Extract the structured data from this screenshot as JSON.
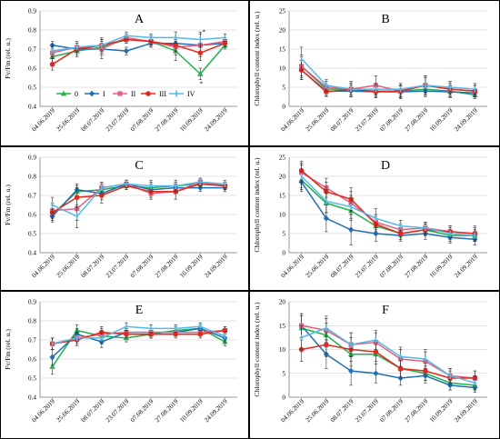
{
  "colors": {
    "0": "#22b14c",
    "I": "#1f6fb5",
    "II": "#e0607e",
    "III": "#e02a1f",
    "IV": "#55b8e6",
    "grid": "#c8c8c8",
    "axis": "#7f7f7f",
    "border": "#000000"
  },
  "chart_data": [
    {
      "type": "line",
      "panel_label": "A",
      "ylabel": "Fv/Fm (rel. u.)",
      "ylim": [
        0.4,
        0.9
      ],
      "yticks": [
        "0.4",
        "0.5",
        "0.6",
        "0.7",
        "0.8",
        "0.9"
      ],
      "grid": true,
      "categories": [
        "04.06.2019",
        "25.06.2019",
        "08.07.2019",
        "23.07.2019",
        "07.08.2019",
        "27.08.2019",
        "10.09.2019",
        "24.09.2019"
      ],
      "legend": {
        "position": "bottom-left",
        "entries": [
          "0",
          "I",
          "II",
          "III",
          "IV"
        ]
      },
      "annotations": [
        "*",
        "*"
      ],
      "series": [
        {
          "name": "0",
          "values": [
            0.66,
            0.69,
            0.71,
            0.75,
            0.74,
            0.69,
            0.57,
            0.72
          ],
          "err": [
            0.03,
            0.03,
            0.03,
            0.02,
            0.02,
            0.05,
            0.03,
            0.02
          ]
        },
        {
          "name": "I",
          "values": [
            0.72,
            0.7,
            0.7,
            0.69,
            0.73,
            0.73,
            0.72,
            0.73
          ],
          "err": [
            0.02,
            0.02,
            0.03,
            0.02,
            0.02,
            0.03,
            0.03,
            0.02
          ]
        },
        {
          "name": "II",
          "values": [
            0.68,
            0.71,
            0.7,
            0.76,
            0.74,
            0.71,
            0.72,
            0.74
          ],
          "err": [
            0.03,
            0.03,
            0.05,
            0.02,
            0.03,
            0.04,
            0.06,
            0.02
          ]
        },
        {
          "name": "III",
          "values": [
            0.62,
            0.7,
            0.72,
            0.75,
            0.74,
            0.72,
            0.68,
            0.73
          ],
          "err": [
            0.03,
            0.03,
            0.03,
            0.02,
            0.02,
            0.03,
            0.04,
            0.02
          ]
        },
        {
          "name": "IV",
          "values": [
            0.69,
            0.71,
            0.72,
            0.77,
            0.76,
            0.76,
            0.75,
            0.76
          ],
          "err": [
            0.03,
            0.02,
            0.04,
            0.02,
            0.02,
            0.03,
            0.04,
            0.02
          ]
        }
      ]
    },
    {
      "type": "line",
      "panel_label": "B",
      "ylabel": "Chlorophyll content index (rel. u.)",
      "ylim": [
        0,
        25
      ],
      "yticks": [
        "0",
        "5",
        "10",
        "15",
        "20",
        "25"
      ],
      "grid": true,
      "categories": [
        "04.06.2019",
        "25.06.2019",
        "08.07.2019",
        "23.07.2019",
        "07.08.2019",
        "27.08.2019",
        "10.09.2019",
        "24.09.2019"
      ],
      "series": [
        {
          "name": "0",
          "values": [
            10.5,
            4.5,
            4.5,
            4.0,
            4.0,
            4.5,
            4.0,
            3.0
          ],
          "err": [
            2.5,
            1.2,
            1.5,
            1.5,
            1.5,
            1.5,
            1.5,
            1.0
          ]
        },
        {
          "name": "I",
          "values": [
            9.5,
            4.0,
            4.0,
            3.8,
            3.8,
            4.0,
            3.8,
            3.5
          ],
          "err": [
            2.5,
            1.2,
            1.5,
            1.5,
            1.5,
            1.5,
            1.5,
            1.0
          ]
        },
        {
          "name": "II",
          "values": [
            10.5,
            5.0,
            4.5,
            5.5,
            4.0,
            5.5,
            4.5,
            4.0
          ],
          "err": [
            3.0,
            1.5,
            2.0,
            2.5,
            2.0,
            2.5,
            2.0,
            1.5
          ]
        },
        {
          "name": "III",
          "values": [
            9.5,
            3.8,
            4.5,
            3.8,
            4.0,
            5.5,
            4.5,
            4.0
          ],
          "err": [
            2.5,
            1.2,
            1.5,
            1.5,
            1.5,
            2.0,
            1.5,
            1.5
          ]
        },
        {
          "name": "IV",
          "values": [
            12.5,
            5.5,
            4.5,
            4.5,
            4.5,
            5.5,
            5.0,
            4.5
          ],
          "err": [
            3.0,
            1.5,
            2.0,
            1.5,
            1.5,
            2.5,
            1.5,
            1.5
          ]
        }
      ]
    },
    {
      "type": "line",
      "panel_label": "C",
      "ylabel": "Fv/Fm (rel. u.)",
      "ylim": [
        0.4,
        0.9
      ],
      "yticks": [
        "0.4",
        "0.5",
        "0.6",
        "0.7",
        "0.8",
        "0.9"
      ],
      "grid": true,
      "categories": [
        "04.06.2019",
        "25.06.2019",
        "08.07.2019",
        "23.07.2019",
        "07.08.2019",
        "27.08.2019",
        "10.09.2019",
        "24.09.2019"
      ],
      "series": [
        {
          "name": "0",
          "values": [
            0.6,
            0.72,
            0.73,
            0.75,
            0.74,
            0.75,
            0.76,
            0.75
          ],
          "err": [
            0.03,
            0.03,
            0.03,
            0.02,
            0.03,
            0.02,
            0.02,
            0.02
          ]
        },
        {
          "name": "I",
          "values": [
            0.59,
            0.73,
            0.71,
            0.76,
            0.73,
            0.74,
            0.74,
            0.74
          ],
          "err": [
            0.03,
            0.03,
            0.03,
            0.02,
            0.03,
            0.02,
            0.02,
            0.02
          ]
        },
        {
          "name": "II",
          "values": [
            0.62,
            0.63,
            0.74,
            0.76,
            0.71,
            0.72,
            0.77,
            0.75
          ],
          "err": [
            0.04,
            0.06,
            0.03,
            0.02,
            0.03,
            0.04,
            0.02,
            0.02
          ]
        },
        {
          "name": "III",
          "values": [
            0.61,
            0.69,
            0.7,
            0.75,
            0.72,
            0.72,
            0.76,
            0.75
          ],
          "err": [
            0.04,
            0.05,
            0.04,
            0.02,
            0.03,
            0.04,
            0.02,
            0.02
          ]
        },
        {
          "name": "IV",
          "values": [
            0.65,
            0.59,
            0.74,
            0.76,
            0.75,
            0.75,
            0.77,
            0.76
          ],
          "err": [
            0.04,
            0.06,
            0.03,
            0.02,
            0.03,
            0.03,
            0.02,
            0.02
          ]
        }
      ]
    },
    {
      "type": "line",
      "panel_label": "D",
      "ylabel": "Chlorophyll content index (rel. u.)",
      "ylim": [
        0,
        25
      ],
      "yticks": [
        "0",
        "5",
        "10",
        "15",
        "20",
        "25"
      ],
      "grid": true,
      "categories": [
        "04.06.2019",
        "25.06.2019",
        "08.07.2019",
        "23.07.2019",
        "07.08.2019",
        "27.08.2019",
        "10.09.2019",
        "24.09.2019"
      ],
      "series": [
        {
          "name": "0",
          "values": [
            19.0,
            13.0,
            11.0,
            7.0,
            5.0,
            6.0,
            4.5,
            4.5
          ],
          "err": [
            2.5,
            2.5,
            2.5,
            2.0,
            1.5,
            1.5,
            1.5,
            1.5
          ]
        },
        {
          "name": "I",
          "values": [
            18.5,
            9.0,
            6.0,
            5.0,
            4.5,
            5.0,
            4.0,
            3.5
          ],
          "err": [
            2.5,
            3.5,
            4.0,
            2.0,
            1.5,
            1.5,
            1.5,
            1.5
          ]
        },
        {
          "name": "II",
          "values": [
            21.0,
            17.0,
            13.0,
            8.0,
            6.0,
            6.5,
            5.5,
            5.0
          ],
          "err": [
            2.5,
            2.5,
            3.0,
            2.0,
            1.5,
            1.5,
            1.5,
            1.5
          ]
        },
        {
          "name": "III",
          "values": [
            21.5,
            16.0,
            14.0,
            7.5,
            5.0,
            6.0,
            5.5,
            5.0
          ],
          "err": [
            2.5,
            2.5,
            3.0,
            2.0,
            1.5,
            1.5,
            1.5,
            2.0
          ]
        },
        {
          "name": "IV",
          "values": [
            20.0,
            13.5,
            12.0,
            9.0,
            7.0,
            6.5,
            5.0,
            4.5
          ],
          "err": [
            3.0,
            3.0,
            3.0,
            2.5,
            1.5,
            1.5,
            1.5,
            1.5
          ]
        }
      ]
    },
    {
      "type": "line",
      "panel_label": "E",
      "ylabel": "Fv/Fm (rel. u.)",
      "ylim": [
        0.4,
        0.9
      ],
      "yticks": [
        "0.4",
        "0.5",
        "0.6",
        "0.7",
        "0.8",
        "0.9"
      ],
      "grid": true,
      "categories": [
        "04.06.2019",
        "25.06.2019",
        "08.07.2019",
        "23.07.2019",
        "07.08.2019",
        "27.08.2019",
        "10.09.2019",
        "24.09.2019"
      ],
      "series": [
        {
          "name": "0",
          "values": [
            0.56,
            0.75,
            0.72,
            0.71,
            0.73,
            0.75,
            0.76,
            0.69
          ],
          "err": [
            0.04,
            0.03,
            0.03,
            0.02,
            0.02,
            0.02,
            0.02,
            0.02
          ]
        },
        {
          "name": "I",
          "values": [
            0.61,
            0.73,
            0.69,
            0.74,
            0.74,
            0.74,
            0.76,
            0.71
          ],
          "err": [
            0.04,
            0.03,
            0.03,
            0.02,
            0.02,
            0.02,
            0.02,
            0.02
          ]
        },
        {
          "name": "II",
          "values": [
            0.68,
            0.71,
            0.73,
            0.74,
            0.74,
            0.74,
            0.74,
            0.75
          ],
          "err": [
            0.03,
            0.03,
            0.03,
            0.02,
            0.02,
            0.02,
            0.02,
            0.02
          ]
        },
        {
          "name": "III",
          "values": [
            0.68,
            0.7,
            0.74,
            0.73,
            0.73,
            0.73,
            0.73,
            0.75
          ],
          "err": [
            0.03,
            0.03,
            0.03,
            0.02,
            0.02,
            0.02,
            0.02,
            0.02
          ]
        },
        {
          "name": "IV",
          "values": [
            0.68,
            0.71,
            0.71,
            0.77,
            0.76,
            0.76,
            0.77,
            0.72
          ],
          "err": [
            0.03,
            0.03,
            0.03,
            0.02,
            0.02,
            0.02,
            0.02,
            0.02
          ]
        }
      ]
    },
    {
      "type": "line",
      "panel_label": "F",
      "ylabel": "Chlorophyll content index (rel. u.)",
      "ylim": [
        0,
        20
      ],
      "yticks": [
        "0",
        "5",
        "10",
        "15",
        "20"
      ],
      "grid": true,
      "categories": [
        "04.06.2019",
        "25.06.2019",
        "08.07.2019",
        "23.07.2019",
        "07.08.2019",
        "27.08.2019",
        "10.09.2019",
        "24.09.2019"
      ],
      "series": [
        {
          "name": "0",
          "values": [
            14.5,
            13.0,
            9.0,
            9.0,
            6.0,
            5.0,
            3.0,
            2.5
          ],
          "err": [
            2.5,
            2.5,
            2.5,
            2.0,
            2.0,
            1.5,
            1.5,
            1.0
          ]
        },
        {
          "name": "I",
          "values": [
            15.0,
            9.0,
            5.5,
            5.0,
            4.0,
            4.5,
            2.5,
            2.0
          ],
          "err": [
            2.5,
            3.0,
            3.0,
            2.0,
            1.5,
            1.5,
            1.0,
            1.0
          ]
        },
        {
          "name": "II",
          "values": [
            15.0,
            14.0,
            11.0,
            11.5,
            8.0,
            7.5,
            4.5,
            4.0
          ],
          "err": [
            2.5,
            2.5,
            2.5,
            2.0,
            2.0,
            2.0,
            1.5,
            1.5
          ]
        },
        {
          "name": "III",
          "values": [
            10.0,
            11.0,
            10.0,
            9.5,
            6.0,
            5.5,
            4.0,
            4.0
          ],
          "err": [
            2.5,
            2.5,
            2.5,
            2.0,
            2.0,
            2.0,
            1.5,
            1.5
          ]
        },
        {
          "name": "IV",
          "values": [
            12.5,
            14.5,
            11.0,
            12.0,
            8.5,
            8.0,
            4.5,
            3.0
          ],
          "err": [
            2.5,
            2.5,
            2.5,
            2.0,
            2.0,
            2.0,
            1.5,
            1.5
          ]
        }
      ]
    }
  ]
}
